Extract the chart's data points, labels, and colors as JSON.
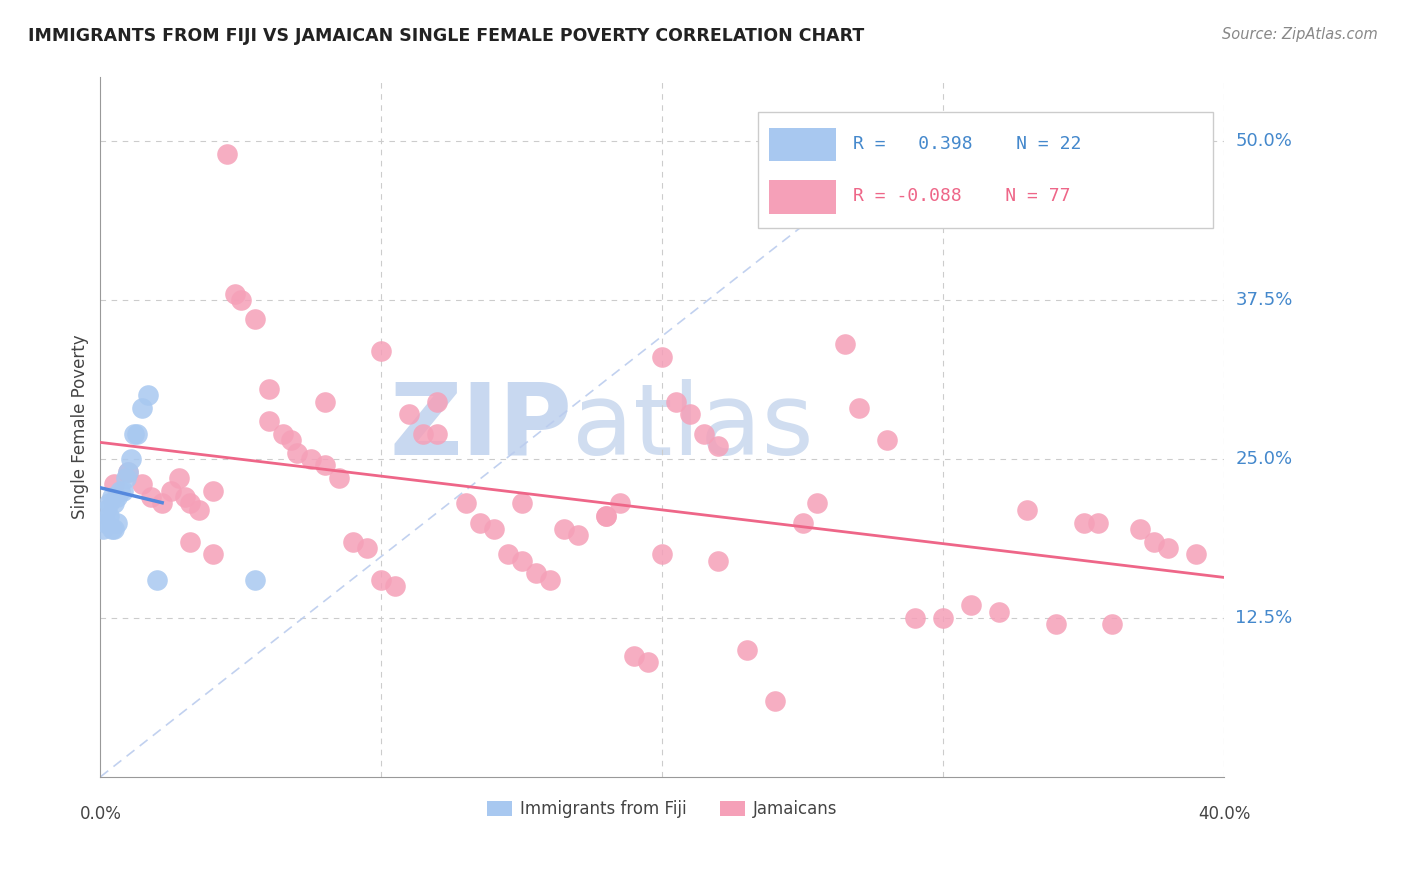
{
  "title": "IMMIGRANTS FROM FIJI VS JAMAICAN SINGLE FEMALE POVERTY CORRELATION CHART",
  "source": "Source: ZipAtlas.com",
  "ylabel": "Single Female Poverty",
  "fiji_R": 0.398,
  "fiji_N": 22,
  "jamaica_R": -0.088,
  "jamaica_N": 77,
  "fiji_color": "#a8c8f0",
  "jamaica_color": "#f5a0b8",
  "fiji_line_color": "#5588dd",
  "jamaica_line_color": "#ee6688",
  "watermark_zip": "ZIP",
  "watermark_atlas": "atlas",
  "watermark_color": "#c8d8f0",
  "background_color": "#ffffff",
  "grid_color": "#cccccc",
  "xlim": [
    0.0,
    0.4
  ],
  "ylim": [
    0.0,
    0.55
  ],
  "ytick_vals": [
    0.125,
    0.25,
    0.375,
    0.5
  ],
  "ytick_labels": [
    "12.5%",
    "25.0%",
    "37.5%",
    "50.0%"
  ],
  "xtick_vals": [
    0.0,
    0.1,
    0.2,
    0.3,
    0.4
  ],
  "xtick_labels": [
    "0.0%",
    "",
    "",
    "",
    "40.0%"
  ],
  "fiji_x": [
    0.001,
    0.002,
    0.002,
    0.003,
    0.003,
    0.004,
    0.004,
    0.005,
    0.005,
    0.006,
    0.006,
    0.007,
    0.008,
    0.009,
    0.01,
    0.011,
    0.012,
    0.013,
    0.015,
    0.017,
    0.02,
    0.055
  ],
  "fiji_y": [
    0.195,
    0.2,
    0.21,
    0.205,
    0.215,
    0.195,
    0.22,
    0.195,
    0.215,
    0.2,
    0.22,
    0.225,
    0.225,
    0.235,
    0.24,
    0.25,
    0.27,
    0.27,
    0.29,
    0.3,
    0.155,
    0.155
  ],
  "jamaica_x": [
    0.005,
    0.01,
    0.015,
    0.018,
    0.022,
    0.025,
    0.028,
    0.03,
    0.032,
    0.035,
    0.04,
    0.045,
    0.048,
    0.05,
    0.055,
    0.06,
    0.065,
    0.068,
    0.07,
    0.075,
    0.08,
    0.085,
    0.09,
    0.095,
    0.1,
    0.105,
    0.11,
    0.115,
    0.12,
    0.13,
    0.135,
    0.14,
    0.145,
    0.15,
    0.155,
    0.16,
    0.165,
    0.17,
    0.18,
    0.185,
    0.19,
    0.195,
    0.2,
    0.205,
    0.21,
    0.215,
    0.22,
    0.23,
    0.24,
    0.25,
    0.255,
    0.265,
    0.27,
    0.28,
    0.29,
    0.3,
    0.31,
    0.32,
    0.33,
    0.34,
    0.35,
    0.355,
    0.36,
    0.37,
    0.375,
    0.38,
    0.39,
    0.032,
    0.04,
    0.06,
    0.08,
    0.1,
    0.12,
    0.15,
    0.18,
    0.2,
    0.22
  ],
  "jamaica_y": [
    0.23,
    0.24,
    0.23,
    0.22,
    0.215,
    0.225,
    0.235,
    0.22,
    0.215,
    0.21,
    0.225,
    0.49,
    0.38,
    0.375,
    0.36,
    0.305,
    0.27,
    0.265,
    0.255,
    0.25,
    0.245,
    0.235,
    0.185,
    0.18,
    0.155,
    0.15,
    0.285,
    0.27,
    0.27,
    0.215,
    0.2,
    0.195,
    0.175,
    0.17,
    0.16,
    0.155,
    0.195,
    0.19,
    0.205,
    0.215,
    0.095,
    0.09,
    0.33,
    0.295,
    0.285,
    0.27,
    0.26,
    0.1,
    0.06,
    0.2,
    0.215,
    0.34,
    0.29,
    0.265,
    0.125,
    0.125,
    0.135,
    0.13,
    0.21,
    0.12,
    0.2,
    0.2,
    0.12,
    0.195,
    0.185,
    0.18,
    0.175,
    0.185,
    0.175,
    0.28,
    0.295,
    0.335,
    0.295,
    0.215,
    0.205,
    0.175,
    0.17
  ]
}
